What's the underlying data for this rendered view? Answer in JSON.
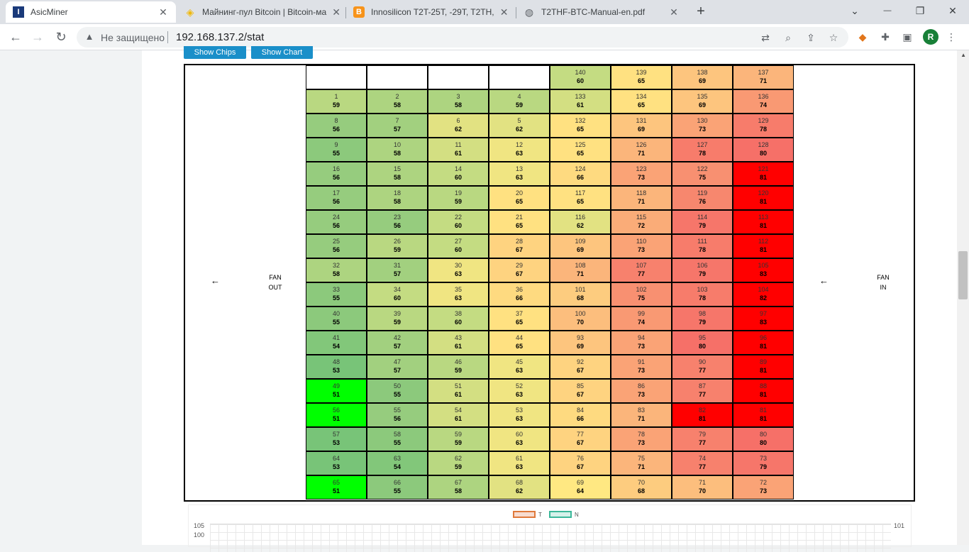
{
  "tabs": [
    {
      "title": "AsicMiner",
      "active": true,
      "icon": "asicminer-logo-icon"
    },
    {
      "title": "Майнинг-пул Bitcoin | Bitcoin-ма",
      "active": false,
      "icon": "binance-pool-icon"
    },
    {
      "title": "Innosilicon T2T-25T, -29T, T2TH,",
      "active": false,
      "icon": "bitcoin-icon"
    },
    {
      "title": "T2THF-BTC-Manual-en.pdf",
      "active": false,
      "icon": "globe-icon"
    }
  ],
  "close_glyph": "✕",
  "new_tab_glyph": "+",
  "window_controls": {
    "minimize": "—",
    "maximize": "❐",
    "close": "✕"
  },
  "address_bar": {
    "security_text": "Не защищено",
    "url": "192.168.137.2/stat"
  },
  "profile_initial": "R",
  "page": {
    "buttons": [
      "Show Chips",
      "Show Chart"
    ],
    "fan_out_label": [
      "FAN",
      "OUT"
    ],
    "fan_in_label": [
      "FAN",
      "IN"
    ],
    "arrow_glyph": "←",
    "chips": [
      [
        null,
        null,
        null,
        null,
        {
          "id": 140,
          "t": 60
        },
        {
          "id": 139,
          "t": 65
        },
        {
          "id": 138,
          "t": 69
        },
        {
          "id": 137,
          "t": 71
        }
      ],
      [
        {
          "id": 1,
          "t": 59
        },
        {
          "id": 2,
          "t": 58
        },
        {
          "id": 3,
          "t": 58
        },
        {
          "id": 4,
          "t": 59
        },
        {
          "id": 133,
          "t": 61
        },
        {
          "id": 134,
          "t": 65
        },
        {
          "id": 135,
          "t": 69
        },
        {
          "id": 136,
          "t": 74
        }
      ],
      [
        {
          "id": 8,
          "t": 56
        },
        {
          "id": 7,
          "t": 57
        },
        {
          "id": 6,
          "t": 62
        },
        {
          "id": 5,
          "t": 62
        },
        {
          "id": 132,
          "t": 65
        },
        {
          "id": 131,
          "t": 69
        },
        {
          "id": 130,
          "t": 73
        },
        {
          "id": 129,
          "t": 78
        }
      ],
      [
        {
          "id": 9,
          "t": 55
        },
        {
          "id": 10,
          "t": 58
        },
        {
          "id": 11,
          "t": 61
        },
        {
          "id": 12,
          "t": 63
        },
        {
          "id": 125,
          "t": 65
        },
        {
          "id": 126,
          "t": 71
        },
        {
          "id": 127,
          "t": 78
        },
        {
          "id": 128,
          "t": 80
        }
      ],
      [
        {
          "id": 16,
          "t": 56
        },
        {
          "id": 15,
          "t": 58
        },
        {
          "id": 14,
          "t": 60
        },
        {
          "id": 13,
          "t": 63
        },
        {
          "id": 124,
          "t": 66
        },
        {
          "id": 123,
          "t": 73
        },
        {
          "id": 122,
          "t": 75
        },
        {
          "id": 121,
          "t": 81
        }
      ],
      [
        {
          "id": 17,
          "t": 56
        },
        {
          "id": 18,
          "t": 58
        },
        {
          "id": 19,
          "t": 59
        },
        {
          "id": 20,
          "t": 65
        },
        {
          "id": 117,
          "t": 65
        },
        {
          "id": 118,
          "t": 71
        },
        {
          "id": 119,
          "t": 76
        },
        {
          "id": 120,
          "t": 81
        }
      ],
      [
        {
          "id": 24,
          "t": 56
        },
        {
          "id": 23,
          "t": 56
        },
        {
          "id": 22,
          "t": 60
        },
        {
          "id": 21,
          "t": 65
        },
        {
          "id": 116,
          "t": 62
        },
        {
          "id": 115,
          "t": 72
        },
        {
          "id": 114,
          "t": 79
        },
        {
          "id": 113,
          "t": 81
        }
      ],
      [
        {
          "id": 25,
          "t": 56
        },
        {
          "id": 26,
          "t": 59
        },
        {
          "id": 27,
          "t": 60
        },
        {
          "id": 28,
          "t": 67
        },
        {
          "id": 109,
          "t": 69
        },
        {
          "id": 110,
          "t": 73
        },
        {
          "id": 111,
          "t": 78
        },
        {
          "id": 112,
          "t": 81
        }
      ],
      [
        {
          "id": 32,
          "t": 58
        },
        {
          "id": 31,
          "t": 57
        },
        {
          "id": 30,
          "t": 63
        },
        {
          "id": 29,
          "t": 67
        },
        {
          "id": 108,
          "t": 71
        },
        {
          "id": 107,
          "t": 77
        },
        {
          "id": 106,
          "t": 79
        },
        {
          "id": 105,
          "t": 83
        }
      ],
      [
        {
          "id": 33,
          "t": 55
        },
        {
          "id": 34,
          "t": 60
        },
        {
          "id": 35,
          "t": 63
        },
        {
          "id": 36,
          "t": 66
        },
        {
          "id": 101,
          "t": 68
        },
        {
          "id": 102,
          "t": 75
        },
        {
          "id": 103,
          "t": 78
        },
        {
          "id": 104,
          "t": 82
        }
      ],
      [
        {
          "id": 40,
          "t": 55
        },
        {
          "id": 39,
          "t": 59
        },
        {
          "id": 38,
          "t": 60
        },
        {
          "id": 37,
          "t": 65
        },
        {
          "id": 100,
          "t": 70
        },
        {
          "id": 99,
          "t": 74
        },
        {
          "id": 98,
          "t": 79
        },
        {
          "id": 97,
          "t": 83
        }
      ],
      [
        {
          "id": 41,
          "t": 54
        },
        {
          "id": 42,
          "t": 57
        },
        {
          "id": 43,
          "t": 61
        },
        {
          "id": 44,
          "t": 65
        },
        {
          "id": 93,
          "t": 69
        },
        {
          "id": 94,
          "t": 73
        },
        {
          "id": 95,
          "t": 80
        },
        {
          "id": 96,
          "t": 81
        }
      ],
      [
        {
          "id": 48,
          "t": 53
        },
        {
          "id": 47,
          "t": 57
        },
        {
          "id": 46,
          "t": 59
        },
        {
          "id": 45,
          "t": 63
        },
        {
          "id": 92,
          "t": 67
        },
        {
          "id": 91,
          "t": 73
        },
        {
          "id": 90,
          "t": 77
        },
        {
          "id": 89,
          "t": 81
        }
      ],
      [
        {
          "id": 49,
          "t": 51
        },
        {
          "id": 50,
          "t": 55
        },
        {
          "id": 51,
          "t": 61
        },
        {
          "id": 52,
          "t": 63
        },
        {
          "id": 85,
          "t": 67
        },
        {
          "id": 86,
          "t": 73
        },
        {
          "id": 87,
          "t": 77
        },
        {
          "id": 88,
          "t": 81
        }
      ],
      [
        {
          "id": 56,
          "t": 51
        },
        {
          "id": 55,
          "t": 56
        },
        {
          "id": 54,
          "t": 61
        },
        {
          "id": 53,
          "t": 63
        },
        {
          "id": 84,
          "t": 66
        },
        {
          "id": 83,
          "t": 71
        },
        {
          "id": 82,
          "t": 81
        },
        {
          "id": 81,
          "t": 81
        }
      ],
      [
        {
          "id": 57,
          "t": 53
        },
        {
          "id": 58,
          "t": 55
        },
        {
          "id": 59,
          "t": 59
        },
        {
          "id": 60,
          "t": 63
        },
        {
          "id": 77,
          "t": 67
        },
        {
          "id": 78,
          "t": 73
        },
        {
          "id": 79,
          "t": 77
        },
        {
          "id": 80,
          "t": 80
        }
      ],
      [
        {
          "id": 64,
          "t": 53
        },
        {
          "id": 63,
          "t": 54
        },
        {
          "id": 62,
          "t": 59
        },
        {
          "id": 61,
          "t": 63
        },
        {
          "id": 76,
          "t": 67
        },
        {
          "id": 75,
          "t": 71
        },
        {
          "id": 74,
          "t": 77
        },
        {
          "id": 73,
          "t": 79
        }
      ],
      [
        {
          "id": 65,
          "t": 51
        },
        {
          "id": 66,
          "t": 55
        },
        {
          "id": 67,
          "t": 58
        },
        {
          "id": 68,
          "t": 62
        },
        {
          "id": 69,
          "t": 64
        },
        {
          "id": 70,
          "t": 68
        },
        {
          "id": 71,
          "t": 70
        },
        {
          "id": 72,
          "t": 73
        }
      ]
    ],
    "chart": {
      "legend": [
        {
          "label": "T",
          "color": "#e07a3c"
        },
        {
          "label": "N",
          "color": "#3cb89a"
        }
      ],
      "y_left_ticks": [
        "105",
        "100"
      ],
      "y_right_tick": "101"
    }
  }
}
